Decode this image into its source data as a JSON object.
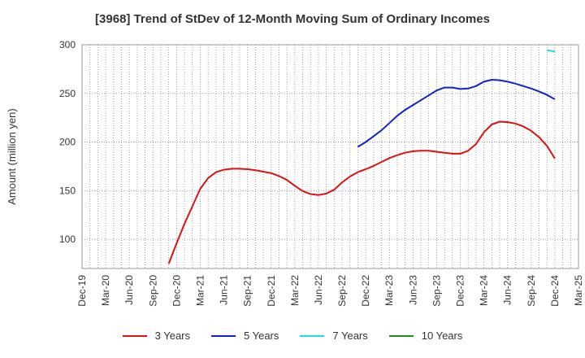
{
  "chart_data": {
    "type": "line",
    "title": "[3968]  Trend of StDev of 12-Month Moving Sum of Ordinary Incomes",
    "ylabel": "Amount (million yen)",
    "xlabel": "",
    "ylim": [
      70,
      300
    ],
    "yticks": [
      100,
      150,
      200,
      250,
      300
    ],
    "xlim": [
      "2019-12",
      "2025-03"
    ],
    "xticks": [
      "Dec-19",
      "Mar-20",
      "Jun-20",
      "Sep-20",
      "Dec-20",
      "Mar-21",
      "Jun-21",
      "Sep-21",
      "Dec-21",
      "Mar-22",
      "Jun-22",
      "Sep-22",
      "Dec-22",
      "Mar-23",
      "Jun-23",
      "Sep-23",
      "Dec-23",
      "Mar-24",
      "Jun-24",
      "Sep-24",
      "Dec-24",
      "Mar-25"
    ],
    "grid": true,
    "legend_position": "bottom",
    "series": [
      {
        "name": "3 Years",
        "color": "#dd1111",
        "points": [
          [
            "2020-11",
            75
          ],
          [
            "2020-12",
            96
          ],
          [
            "2021-01",
            116
          ],
          [
            "2021-02",
            134
          ],
          [
            "2021-03",
            152
          ],
          [
            "2021-04",
            163
          ],
          [
            "2021-05",
            169
          ],
          [
            "2021-06",
            171.5
          ],
          [
            "2021-07",
            172.5
          ],
          [
            "2021-08",
            172.5
          ],
          [
            "2021-09",
            172
          ],
          [
            "2021-10",
            171
          ],
          [
            "2021-11",
            169.5
          ],
          [
            "2021-12",
            168
          ],
          [
            "2022-01",
            165
          ],
          [
            "2022-02",
            161
          ],
          [
            "2022-03",
            155
          ],
          [
            "2022-04",
            149.5
          ],
          [
            "2022-05",
            146.5
          ],
          [
            "2022-06",
            145.5
          ],
          [
            "2022-07",
            147
          ],
          [
            "2022-08",
            151
          ],
          [
            "2022-09",
            158.5
          ],
          [
            "2022-10",
            164.5
          ],
          [
            "2022-11",
            169
          ],
          [
            "2022-12",
            172
          ],
          [
            "2023-01",
            175.5
          ],
          [
            "2023-02",
            179.5
          ],
          [
            "2023-03",
            183.5
          ],
          [
            "2023-04",
            186.5
          ],
          [
            "2023-05",
            189
          ],
          [
            "2023-06",
            190.5
          ],
          [
            "2023-07",
            191
          ],
          [
            "2023-08",
            191
          ],
          [
            "2023-09",
            190
          ],
          [
            "2023-10",
            189
          ],
          [
            "2023-11",
            188
          ],
          [
            "2023-12",
            188
          ],
          [
            "2024-01",
            191
          ],
          [
            "2024-02",
            198
          ],
          [
            "2024-03",
            210
          ],
          [
            "2024-04",
            218
          ],
          [
            "2024-05",
            221
          ],
          [
            "2024-06",
            220.5
          ],
          [
            "2024-07",
            219
          ],
          [
            "2024-08",
            216
          ],
          [
            "2024-09",
            211.5
          ],
          [
            "2024-10",
            205
          ],
          [
            "2024-11",
            196
          ],
          [
            "2024-12",
            183
          ]
        ]
      },
      {
        "name": "5 Years",
        "color": "#1122cc",
        "points": [
          [
            "2022-11",
            195
          ],
          [
            "2022-12",
            200
          ],
          [
            "2023-01",
            206
          ],
          [
            "2023-02",
            212
          ],
          [
            "2023-03",
            219.5
          ],
          [
            "2023-04",
            227
          ],
          [
            "2023-05",
            233
          ],
          [
            "2023-06",
            238
          ],
          [
            "2023-07",
            243
          ],
          [
            "2023-08",
            248
          ],
          [
            "2023-09",
            253
          ],
          [
            "2023-10",
            256
          ],
          [
            "2023-11",
            256
          ],
          [
            "2023-12",
            254.5
          ],
          [
            "2024-01",
            255
          ],
          [
            "2024-02",
            257.5
          ],
          [
            "2024-03",
            262
          ],
          [
            "2024-04",
            264
          ],
          [
            "2024-05",
            263.5
          ],
          [
            "2024-06",
            262
          ],
          [
            "2024-07",
            260
          ],
          [
            "2024-08",
            257.5
          ],
          [
            "2024-09",
            255
          ],
          [
            "2024-10",
            252
          ],
          [
            "2024-11",
            248.5
          ],
          [
            "2024-12",
            244
          ]
        ]
      },
      {
        "name": "7 Years",
        "color": "#22dddd",
        "points": [
          [
            "2024-11",
            294.5
          ],
          [
            "2024-12",
            293
          ]
        ]
      },
      {
        "name": "10 Years",
        "color": "#228822",
        "points": []
      }
    ]
  }
}
